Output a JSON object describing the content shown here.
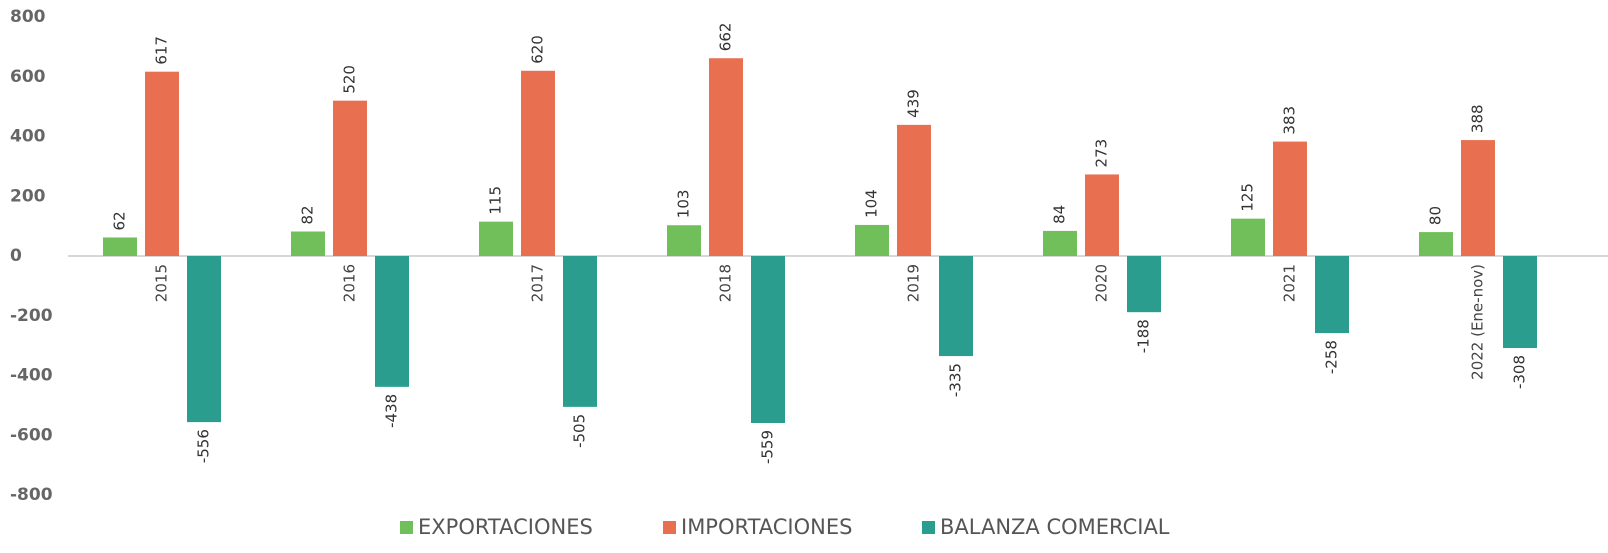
{
  "chart_data": {
    "type": "bar",
    "categories": [
      "2015",
      "2016",
      "2017",
      "2018",
      "2019",
      "2020",
      "2021",
      "2022 (Ene-nov)"
    ],
    "series": [
      {
        "name": "EXPORTACIONES",
        "color": "#70bf5a",
        "values": [
          62,
          82,
          115,
          103,
          104,
          84,
          125,
          80
        ]
      },
      {
        "name": "IMPORTACIONES",
        "color": "#e87050",
        "values": [
          617,
          520,
          620,
          662,
          439,
          273,
          383,
          388
        ]
      },
      {
        "name": "BALANZA COMERCIAL",
        "color": "#2a9d8f",
        "values": [
          -556,
          -438,
          -505,
          -559,
          -335,
          -188,
          -258,
          -308
        ]
      }
    ],
    "ylim": [
      -800,
      800
    ],
    "yticks": [
      -800,
      -600,
      -400,
      -200,
      0,
      200,
      400,
      600,
      800
    ],
    "legend": "bottom"
  }
}
